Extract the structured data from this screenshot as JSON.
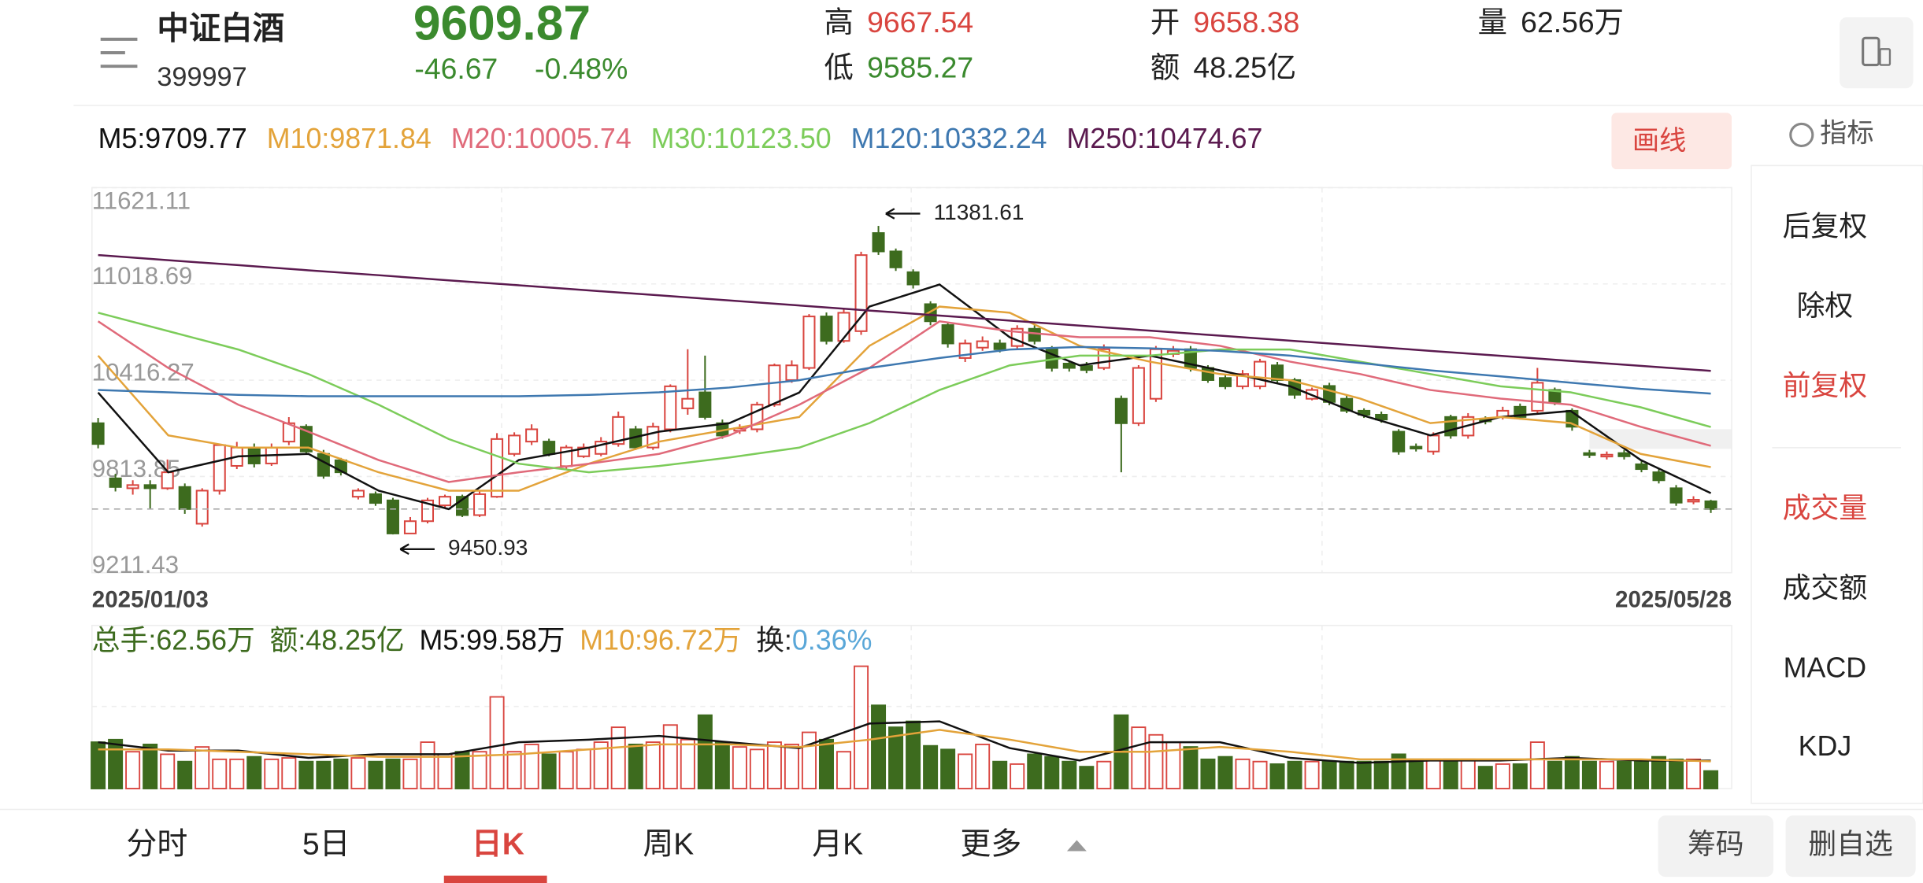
{
  "header": {
    "name": "中证白酒",
    "code": "399997",
    "price": "9609.87",
    "change": "-46.67",
    "change_pct": "-0.48%",
    "high_label": "高",
    "high": "9667.54",
    "low_label": "低",
    "low": "9585.27",
    "open_label": "开",
    "open": "9658.38",
    "amount_label": "额",
    "amount": "48.25亿",
    "volume_label": "量",
    "volume": "62.56万"
  },
  "draw_button": "画线",
  "indicator_button": "指标",
  "side_menu": [
    "后复权",
    "除权",
    "前复权",
    "成交量",
    "成交额",
    "MACD",
    "KDJ"
  ],
  "tabs": [
    "分时",
    "5日",
    "日K",
    "周K",
    "月K",
    "更多"
  ],
  "buttons": [
    "筹码",
    "删自选"
  ],
  "chart_data": [
    {
      "type": "candlestick",
      "up_color": "#d9453f",
      "down_color": "#3d6b1e",
      "date_labels": [
        "2025/01/03",
        "2025/05/28"
      ],
      "ylim": [
        9211.43,
        11621.11
      ],
      "yticks": [
        9211.43,
        9813.85,
        10416.27,
        11018.69,
        11621.11
      ],
      "grid": true,
      "candles": {
        "open": [
          10147,
          9802,
          9740,
          9760,
          9740,
          9748,
          9518,
          9725,
          9880,
          9995,
          9895,
          10032,
          10125,
          9955,
          9915,
          9687,
          9703,
          9664,
          9457,
          9534,
          9633,
          9687,
          9572,
          9687,
          9955,
          10032,
          10032,
          9878,
          9940,
          9955,
          10017,
          10109,
          9995,
          10109,
          10240,
          10340,
          10147,
          10100,
          10109,
          10263,
          10417,
          10493,
          10815,
          10662,
          10723,
          11337,
          11222,
          11092,
          10892,
          10761,
          10555,
          10620,
          10646,
          10630,
          10738,
          10610,
          10520,
          10505,
          10493,
          10300,
          10147,
          10300,
          10580,
          10610,
          10493,
          10430,
          10378,
          10378,
          10509,
          10417,
          10300,
          10380,
          10300,
          10225,
          10200,
          10094,
          10000,
          9970,
          10186,
          10070,
          10170,
          10186,
          10250,
          10225,
          10355,
          10225,
          9960,
          9940,
          9960,
          9890,
          9840,
          9740,
          9660,
          9658.38
        ],
        "close": [
          10017,
          9748,
          9760,
          9740,
          9840,
          9610,
          9725,
          10010,
          9995,
          9895,
          9995,
          10147,
          9970,
          9818,
          9840,
          9725,
          9648,
          9457,
          9534,
          9664,
          9687,
          9572,
          9703,
          10048,
          10070,
          10109,
          9955,
          9995,
          9995,
          10032,
          10186,
          9995,
          10125,
          10378,
          10300,
          10186,
          10070,
          10115,
          10263,
          10509,
          10509,
          10815,
          10662,
          10838,
          11199,
          11222,
          11122,
          11015,
          10785,
          10646,
          10646,
          10660,
          10610,
          10738,
          10662,
          10493,
          10493,
          10480,
          10610,
          10147,
          10493,
          10610,
          10600,
          10493,
          10417,
          10378,
          10455,
          10532,
          10417,
          10325,
          10355,
          10280,
          10225,
          10200,
          10170,
          9970,
          9990,
          10070,
          10070,
          10186,
          10160,
          10225,
          10186,
          10400,
          10280,
          10125,
          9950,
          9950,
          9940,
          9860,
          9790,
          9650,
          9668,
          9609.87
        ],
        "high": [
          10180,
          9830,
          9790,
          9790,
          9920,
          9770,
          9740,
          10020,
          10030,
          10020,
          10020,
          10185,
          10140,
          9980,
          9930,
          9740,
          9720,
          9680,
          9560,
          9680,
          9700,
          9700,
          9720,
          10085,
          10090,
          10140,
          10050,
          10010,
          10020,
          10060,
          10220,
          10130,
          10150,
          10390,
          10610,
          10570,
          10170,
          10140,
          10280,
          10520,
          10540,
          10830,
          10840,
          10860,
          11220,
          11381.61,
          11240,
          11110,
          10910,
          10780,
          10670,
          10690,
          10670,
          10760,
          10760,
          10630,
          10540,
          10530,
          10640,
          10320,
          10510,
          10630,
          10630,
          10630,
          10510,
          10450,
          10480,
          10550,
          10530,
          10430,
          10370,
          10400,
          10320,
          10240,
          10220,
          10110,
          10020,
          10090,
          10200,
          10210,
          10190,
          10250,
          10270,
          10493,
          10370,
          10240,
          9980,
          9970,
          9980,
          9910,
          9860,
          9760,
          9690,
          9667.54
        ],
        "low": [
          9990,
          9720,
          9700,
          9610,
          9730,
          9580,
          9500,
          9700,
          9860,
          9870,
          9880,
          10010,
          9950,
          9800,
          9820,
          9670,
          9630,
          9450.93,
          9455,
          9520,
          9620,
          9560,
          9560,
          9680,
          9940,
          10010,
          9940,
          9860,
          9930,
          9940,
          10000,
          9980,
          9980,
          10090,
          10200,
          10170,
          10050,
          10080,
          10090,
          10250,
          10400,
          10480,
          10640,
          10650,
          10700,
          11200,
          11100,
          10990,
          10760,
          10620,
          10530,
          10600,
          10590,
          10610,
          10640,
          10470,
          10470,
          10460,
          10480,
          9840,
          10130,
          10280,
          10560,
          10470,
          10400,
          10360,
          10360,
          10360,
          10400,
          10300,
          10290,
          10260,
          10210,
          10180,
          10150,
          9950,
          9970,
          9950,
          10050,
          10050,
          10140,
          10170,
          10170,
          10210,
          10260,
          10100,
          9930,
          9920,
          9920,
          9840,
          9770,
          9630,
          9640,
          9585.27
        ]
      },
      "series": [
        {
          "name": "M5:9709.77",
          "color": "#111111",
          "values": [
            10339,
            9840,
            9940,
            9955,
            9725,
            9610,
            9917,
            9994,
            10094,
            10147,
            10339,
            10877,
            11015,
            10685,
            10509,
            10570,
            10478,
            10378,
            10201,
            10071,
            10186,
            10224,
            9917,
            9709.77
          ]
        },
        {
          "name": "M10:9871.84",
          "color": "#e3a33a",
          "values": [
            10570,
            10071,
            9994,
            9994,
            9840,
            9725,
            9725,
            9894,
            10032,
            10109,
            10186,
            10631,
            10877,
            10838,
            10631,
            10532,
            10455,
            10416,
            10301,
            10148,
            10186,
            10148,
            9955,
            9871.84
          ]
        },
        {
          "name": "M20:10005.74",
          "color": "#e06a7a",
          "values": [
            10785,
            10493,
            10263,
            10094,
            9917,
            9779,
            9840,
            9894,
            9955,
            10071,
            10263,
            10493,
            10785,
            10723,
            10685,
            10685,
            10631,
            10532,
            10455,
            10355,
            10301,
            10263,
            10125,
            10005.74
          ]
        },
        {
          "name": "M30:10123.50",
          "color": "#7ccc5a",
          "values": [
            10838,
            10723,
            10608,
            10455,
            10263,
            10048,
            9894,
            9840,
            9879,
            9932,
            9994,
            10148,
            10355,
            10509,
            10570,
            10570,
            10608,
            10608,
            10532,
            10455,
            10378,
            10340,
            10247,
            10123.5
          ]
        },
        {
          "name": "M120:10332.24",
          "color": "#3e78b0",
          "values": [
            10355,
            10340,
            10324,
            10316,
            10316,
            10316,
            10316,
            10324,
            10340,
            10370,
            10416,
            10493,
            10555,
            10608,
            10624,
            10616,
            10600,
            10570,
            10524,
            10478,
            10440,
            10401,
            10362,
            10332.24
          ]
        },
        {
          "name": "M250:10474.67",
          "color": "#5b1a4f",
          "values": [
            11199,
            11167,
            11136,
            11104,
            11073,
            11041,
            11010,
            10978,
            10947,
            10915,
            10884,
            10852,
            10821,
            10789,
            10758,
            10726,
            10695,
            10663,
            10632,
            10600,
            10569,
            10537,
            10506,
            10474.67
          ]
        }
      ]
    },
    {
      "type": "bar",
      "total_label": "总手:62.56万",
      "amount_label": "额:48.25亿",
      "turnover_label": "换:",
      "turnover": "0.36%",
      "ylim": [
        0,
        580
      ],
      "values": [
        165,
        174,
        131,
        157,
        122,
        96,
        148,
        104,
        104,
        113,
        104,
        109,
        96,
        96,
        104,
        109,
        96,
        104,
        104,
        165,
        122,
        131,
        131,
        326,
        131,
        157,
        122,
        131,
        139,
        165,
        218,
        157,
        165,
        226,
        174,
        261,
        165,
        148,
        139,
        165,
        157,
        200,
        174,
        131,
        435,
        296,
        218,
        239,
        152,
        139,
        122,
        157,
        96,
        87,
        122,
        113,
        96,
        78,
        96,
        261,
        218,
        191,
        165,
        148,
        104,
        113,
        104,
        96,
        87,
        96,
        96,
        96,
        96,
        96,
        96,
        122,
        104,
        104,
        104,
        104,
        78,
        87,
        87,
        165,
        96,
        113,
        96,
        96,
        96,
        96,
        113,
        104,
        104,
        62.56
      ],
      "series": [
        {
          "name": "M5:99.58万",
          "color": "#111111",
          "values": [
            165,
            135,
            135,
            109,
            122,
            122,
            165,
            174,
            187,
            165,
            144,
            231,
            239,
            144,
            100,
            165,
            165,
            109,
            91,
            100,
            100,
            109,
            100,
            99.58
          ]
        },
        {
          "name": "M10:96.72万",
          "color": "#e3a33a",
          "values": [
            139,
            139,
            131,
            122,
            113,
            113,
            122,
            139,
            157,
            157,
            148,
            174,
            209,
            174,
            131,
            131,
            148,
            131,
            104,
            104,
            104,
            104,
            104,
            96.72
          ]
        }
      ]
    }
  ]
}
